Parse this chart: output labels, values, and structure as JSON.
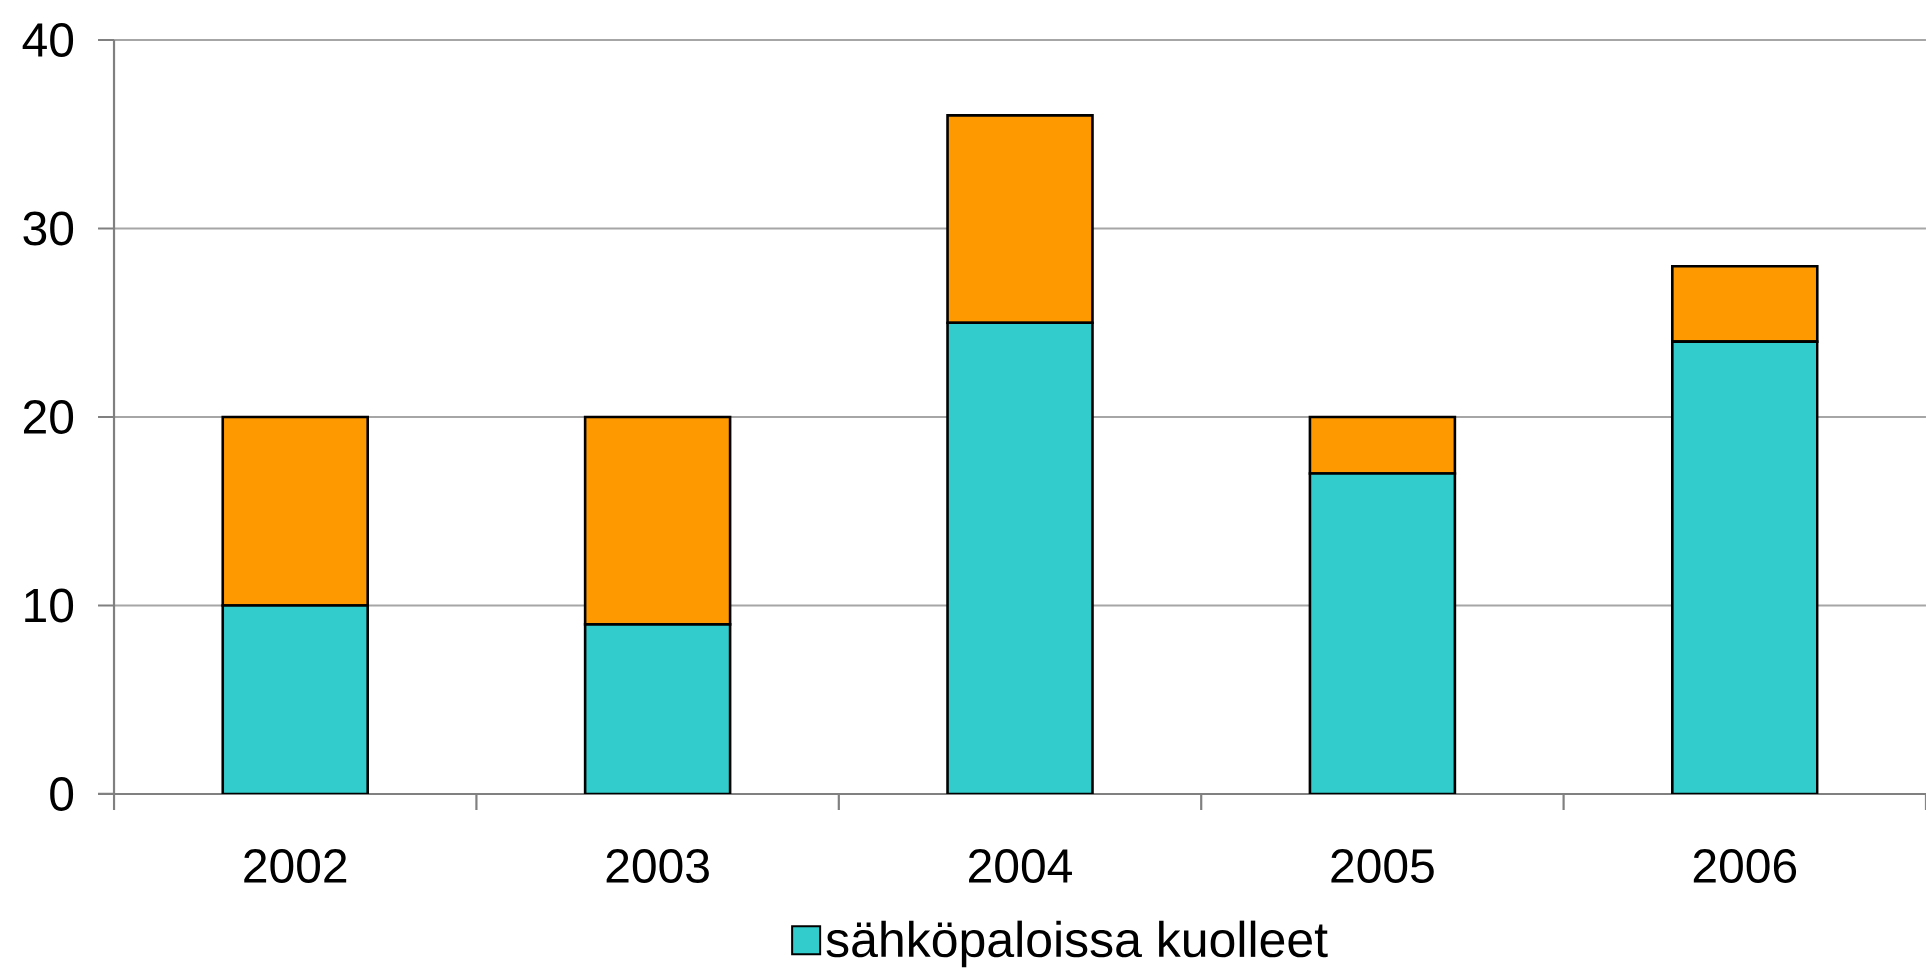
{
  "chart_data": {
    "type": "bar",
    "stacked": true,
    "categories": [
      "2002",
      "2003",
      "2004",
      "2005",
      "2006"
    ],
    "series": [
      {
        "name": "sähköpaloissa kuolleet",
        "color": "#33cccc",
        "values": [
          10,
          9,
          25,
          17,
          24
        ]
      },
      {
        "color": "#ff9900",
        "values": [
          10,
          11,
          11,
          3,
          4
        ]
      }
    ],
    "ylim": [
      0,
      40
    ],
    "yticks": [
      0,
      10,
      20,
      30,
      40
    ],
    "grid": "y",
    "legend": "bottom"
  }
}
